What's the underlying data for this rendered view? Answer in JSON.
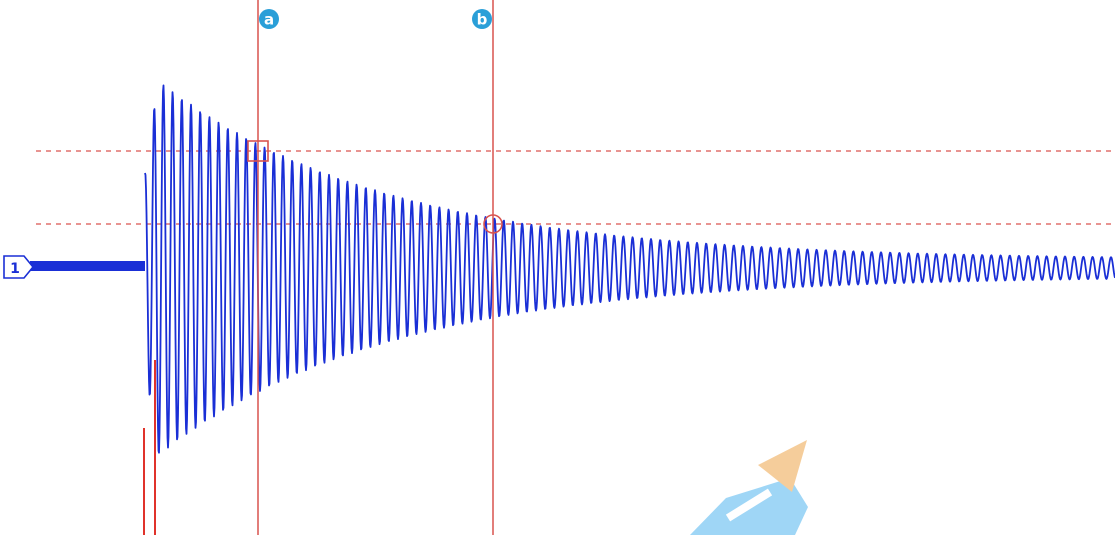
{
  "scope": {
    "cursor_a": {
      "label": "a",
      "badge_color": "#2a9fd8"
    },
    "cursor_b": {
      "label": "b",
      "badge_color": "#2a9fd8"
    },
    "channel_marker": {
      "label": "1"
    },
    "colors": {
      "waveform": "#1a2fd6",
      "cursor_line": "#d9534f",
      "level_dash": "#d9534f",
      "trigger_pulse": "#e0332b",
      "watermark_blue": "#8fd0f5",
      "watermark_orange": "#f4c58a"
    },
    "icons": {
      "channel_marker": "channel-1-marker-icon",
      "cursor_a_marker": "square-marker-icon",
      "cursor_b_marker": "circle-marker-icon",
      "watermark": "pencil-logo-icon"
    }
  }
}
